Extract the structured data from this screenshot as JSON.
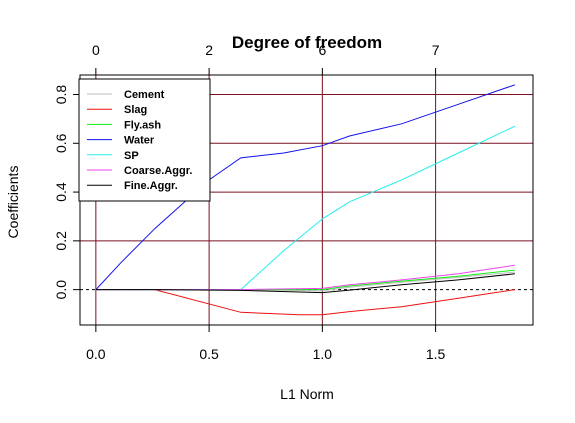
{
  "chart_data": {
    "type": "line",
    "title": "Degree of freedom",
    "xlabel": "L1 Norm",
    "ylabel": "Coefficients",
    "xlim": [
      -0.07,
      1.93
    ],
    "ylim": [
      -0.145,
      0.88
    ],
    "x_ticks": [
      {
        "value": 0.0,
        "label": "0.0"
      },
      {
        "value": 0.5,
        "label": "0.5"
      },
      {
        "value": 1.0,
        "label": "1.0"
      },
      {
        "value": 1.5,
        "label": "1.5"
      }
    ],
    "y_ticks": [
      {
        "value": 0.0,
        "label": "0.0"
      },
      {
        "value": 0.2,
        "label": "0.2"
      },
      {
        "value": 0.4,
        "label": "0.4"
      },
      {
        "value": 0.6,
        "label": "0.6"
      },
      {
        "value": 0.8,
        "label": "0.8"
      }
    ],
    "top_ticks": [
      {
        "value": 0.0,
        "label": "0"
      },
      {
        "value": 0.5,
        "label": "2"
      },
      {
        "value": 1.0,
        "label": "6"
      },
      {
        "value": 1.5,
        "label": "7"
      }
    ],
    "grid": {
      "x": [
        0.0,
        0.5,
        1.0,
        1.5
      ],
      "y": [
        0.2,
        0.4,
        0.6,
        0.8
      ],
      "color": "#7a1020"
    },
    "zero_line": {
      "y": 0.0,
      "style": "dashed",
      "color": "#000000"
    },
    "legend": {
      "position": "top-left"
    },
    "series": [
      {
        "name": "Cement",
        "color": "#bebebe",
        "x": [
          0.0,
          0.26,
          0.64,
          1.0,
          1.12,
          1.35,
          1.6,
          1.85
        ],
        "y": [
          0.0,
          0.0,
          0.0,
          -0.005,
          0.01,
          0.03,
          0.05,
          0.072
        ]
      },
      {
        "name": "Slag",
        "color": "#ee1111",
        "x": [
          0.0,
          0.26,
          0.64,
          0.9,
          1.0,
          1.12,
          1.35,
          1.6,
          1.85
        ],
        "y": [
          0.0,
          0.0,
          -0.093,
          -0.103,
          -0.103,
          -0.09,
          -0.07,
          -0.035,
          0.0
        ]
      },
      {
        "name": "Fly.ash",
        "color": "#11ee11",
        "x": [
          0.0,
          0.26,
          0.64,
          1.0,
          1.12,
          1.35,
          1.6,
          1.85
        ],
        "y": [
          0.0,
          0.0,
          0.0,
          0.0,
          0.015,
          0.035,
          0.055,
          0.08
        ]
      },
      {
        "name": "Water",
        "color": "#1111ee",
        "x": [
          0.0,
          0.11,
          0.26,
          0.5,
          0.64,
          0.83,
          1.0,
          1.12,
          1.35,
          1.6,
          1.85
        ],
        "y": [
          0.0,
          0.11,
          0.25,
          0.45,
          0.54,
          0.56,
          0.59,
          0.63,
          0.68,
          0.76,
          0.84
        ]
      },
      {
        "name": "SP",
        "color": "#22eeee",
        "x": [
          0.0,
          0.26,
          0.64,
          0.83,
          1.0,
          1.12,
          1.35,
          1.6,
          1.85
        ],
        "y": [
          0.0,
          0.0,
          0.0,
          0.16,
          0.29,
          0.36,
          0.45,
          0.56,
          0.67
        ]
      },
      {
        "name": "Coarse.Aggr.",
        "color": "#ee44ee",
        "x": [
          0.0,
          0.26,
          0.64,
          1.0,
          1.12,
          1.35,
          1.6,
          1.85
        ],
        "y": [
          0.0,
          0.0,
          0.0,
          0.005,
          0.02,
          0.04,
          0.065,
          0.1
        ]
      },
      {
        "name": "Fine.Aggr.",
        "color": "#000000",
        "x": [
          0.0,
          0.26,
          0.64,
          1.0,
          1.12,
          1.35,
          1.6,
          1.85
        ],
        "y": [
          0.0,
          0.0,
          -0.003,
          -0.012,
          -0.002,
          0.02,
          0.04,
          0.065
        ]
      }
    ]
  }
}
